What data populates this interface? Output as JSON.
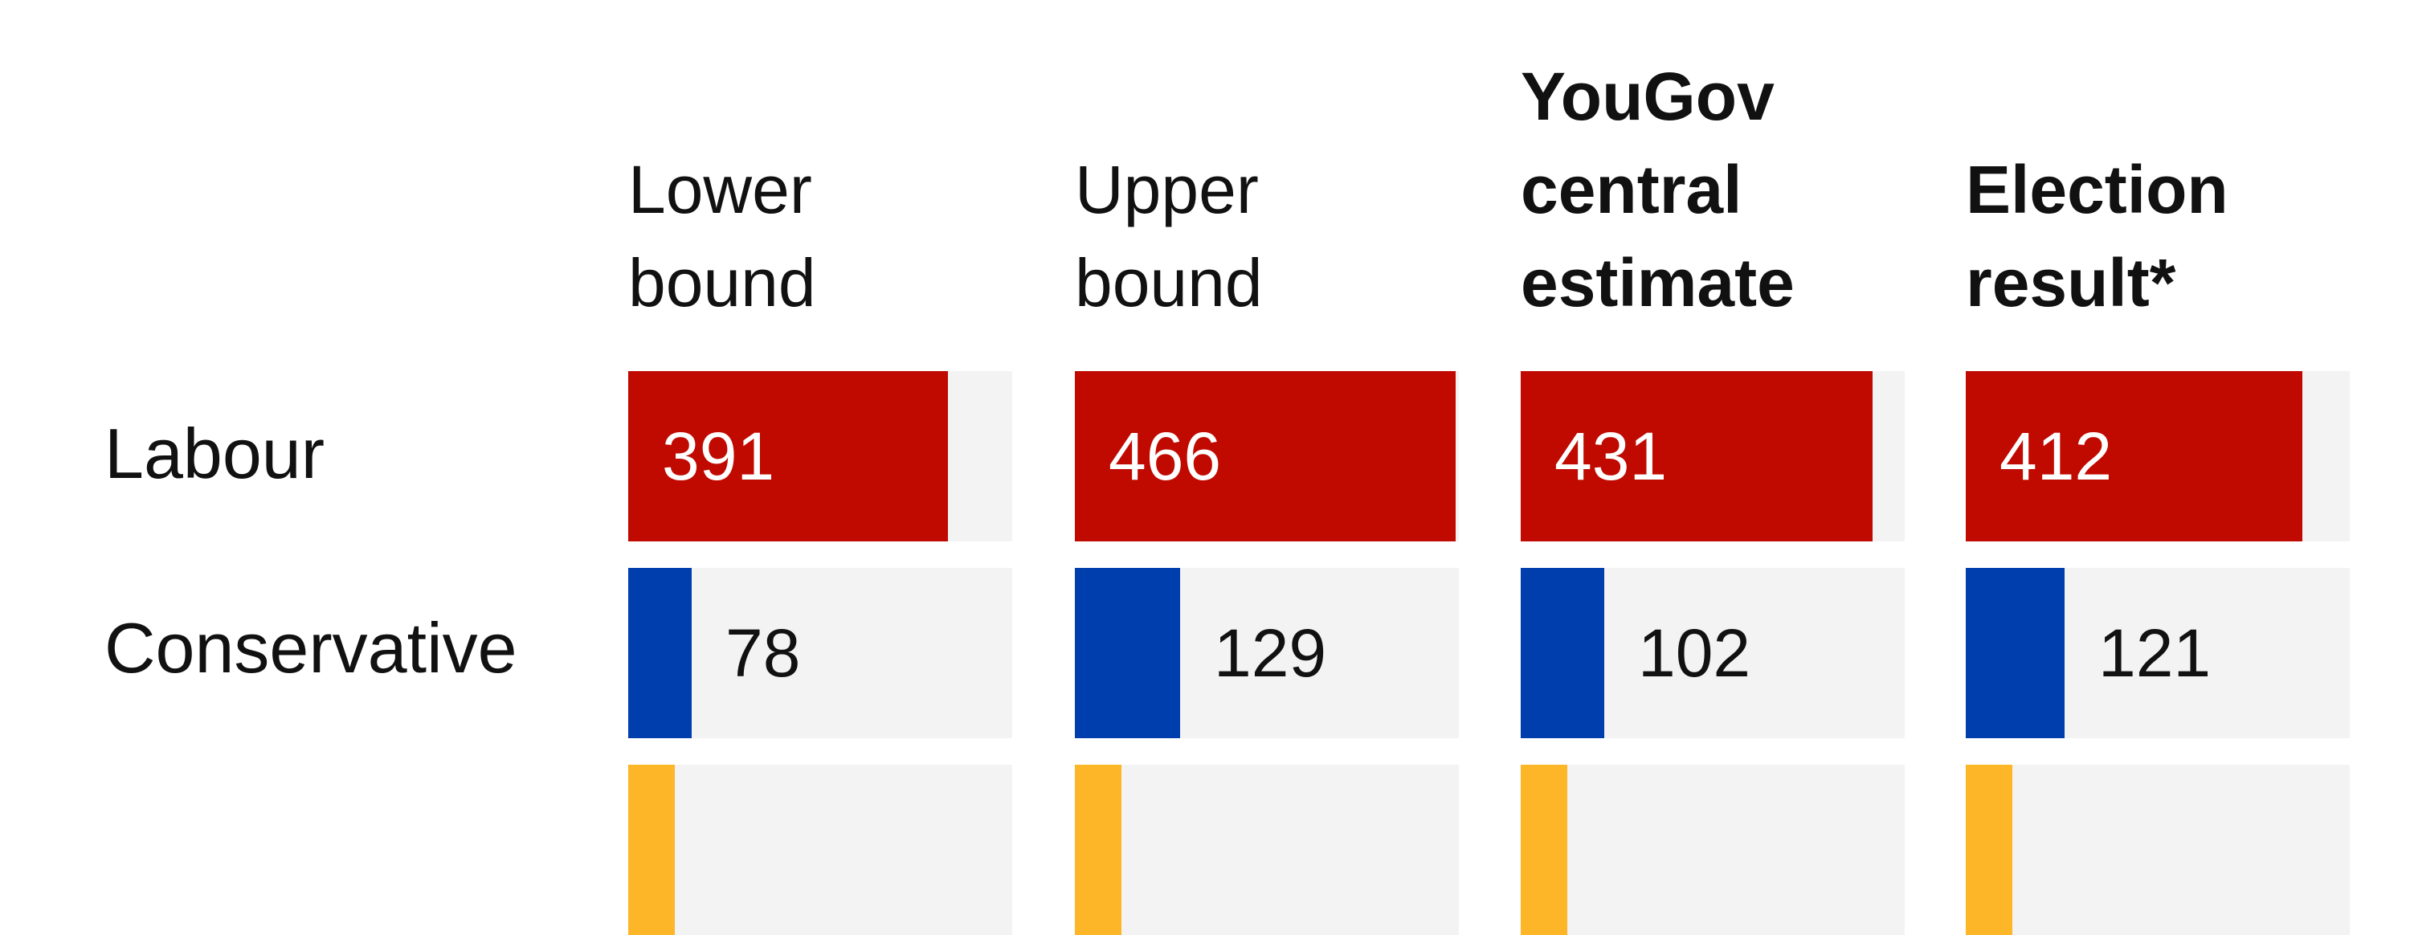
{
  "chart_data": {
    "type": "table",
    "columns": [
      {
        "label_lines": [
          "Lower",
          "bound"
        ],
        "bold": false
      },
      {
        "label_lines": [
          "Upper",
          "bound"
        ],
        "bold": false
      },
      {
        "label_lines": [
          "YouGov",
          "central",
          "estimate"
        ],
        "bold": true
      },
      {
        "label_lines": [
          "Election",
          "result*"
        ],
        "bold": true
      }
    ],
    "rows": [
      {
        "party": "Labour",
        "color": "#c00a00",
        "values": [
          391,
          466,
          431,
          412
        ],
        "label_inside": true
      },
      {
        "party": "Conservative",
        "color": "#003ead",
        "values": [
          78,
          129,
          102,
          121
        ],
        "label_inside": false
      },
      {
        "party": "",
        "color": "#fdb628",
        "values": [
          null,
          null,
          null,
          null
        ],
        "label_inside": false
      }
    ],
    "scale_max": 470,
    "colors": {
      "track": "#f3f3f3",
      "text": "#111111",
      "text_on_bar": "#ffffff"
    }
  }
}
